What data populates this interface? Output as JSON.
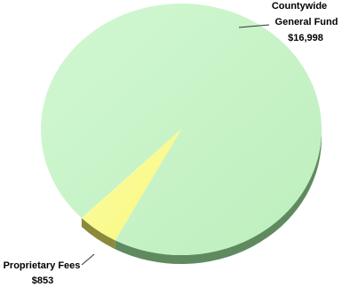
{
  "chart_data": {
    "type": "pie",
    "title": "",
    "slices": [
      {
        "label_lines": [
          "Countywide",
          "General Fund"
        ],
        "value": 16998,
        "value_text": "$16,998",
        "color": "#c8f5c8"
      },
      {
        "label_lines": [
          "Proprietary Fees"
        ],
        "value": 853,
        "value_text": "$853",
        "color": "#ffff99"
      }
    ]
  }
}
